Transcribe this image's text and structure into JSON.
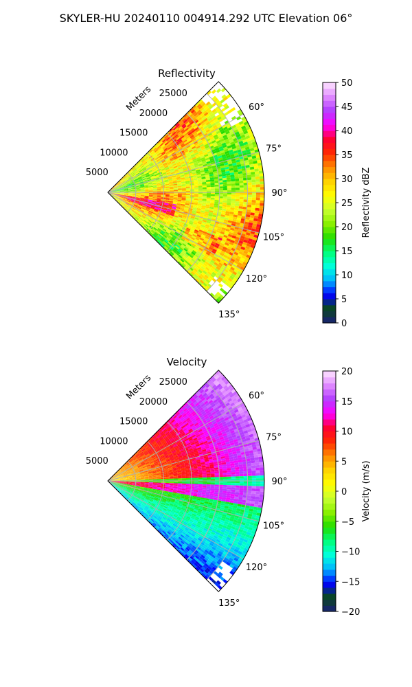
{
  "suptitle": "SKYLER-HU  20240110  004914.292 UTC Elevation 06°",
  "chart_data": [
    {
      "type": "heatmap",
      "title": "Reflectivity",
      "radial_axis_label": "Meters",
      "range_ticks": [
        5000,
        10000,
        15000,
        20000,
        25000
      ],
      "range_max": 28000,
      "azimuth_ticks": [
        "60°",
        "75°",
        "90°",
        "105°",
        "120°",
        "135°"
      ],
      "azimuth_range_deg": [
        45,
        135
      ],
      "colorbar": {
        "label": "Reflectivity dBZ",
        "min": 0,
        "max": 50,
        "ticks": [
          "0",
          "5",
          "10",
          "15",
          "20",
          "25",
          "30",
          "35",
          "40",
          "45",
          "50"
        ]
      },
      "colormap": [
        "#1a1f7a",
        "#0a4a1a",
        "#0000ff",
        "#00b4ff",
        "#00ffdc",
        "#00ff7a",
        "#22dd00",
        "#88f000",
        "#c8ff30",
        "#ffff00",
        "#ffd200",
        "#ff8c00",
        "#ff2a00",
        "#ff0032",
        "#ff00ff",
        "#b23cff",
        "#e08aff",
        "#ffe6ff"
      ],
      "grid": true
    },
    {
      "type": "heatmap",
      "title": "Velocity",
      "radial_axis_label": "Meters",
      "range_ticks": [
        5000,
        10000,
        15000,
        20000,
        25000
      ],
      "range_max": 28000,
      "azimuth_ticks": [
        "60°",
        "75°",
        "90°",
        "105°",
        "120°",
        "135°"
      ],
      "azimuth_range_deg": [
        45,
        135
      ],
      "colorbar": {
        "label": "Velocity (m/s)",
        "min": -20,
        "max": 20,
        "ticks": [
          "−20",
          "−15",
          "−10",
          "−5",
          "0",
          "5",
          "10",
          "15",
          "20"
        ]
      },
      "colormap": [
        "#1a1f7a",
        "#0a4a1a",
        "#0000ff",
        "#00b4ff",
        "#00ffdc",
        "#00ff7a",
        "#22dd00",
        "#88f000",
        "#c8ff30",
        "#ffff00",
        "#ffd200",
        "#ff8c00",
        "#ff2a00",
        "#ff0032",
        "#ff00ff",
        "#b23cff",
        "#e08aff",
        "#ffe6ff"
      ],
      "grid": true
    }
  ]
}
